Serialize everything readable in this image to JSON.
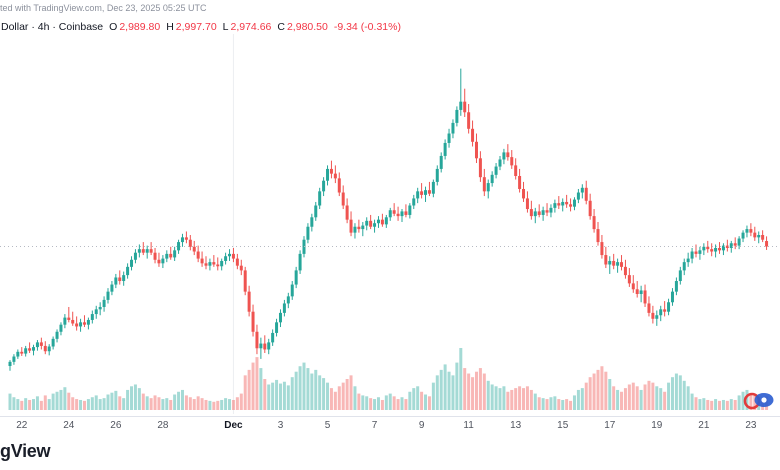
{
  "header": {
    "attribution": "ted with TradingView.com, Dec 23, 2025 05:25 UTC",
    "title": "Dollar · 4h · Coinbase",
    "ohlc": {
      "o_label": "O",
      "o": "2,989.80",
      "h_label": "H",
      "h": "2,997.70",
      "l_label": "L",
      "l": "2,974.66",
      "c_label": "C",
      "c": "2,980.50",
      "change": "-9.34 (-0.31%)"
    }
  },
  "footer": {
    "logo_text": "gView"
  },
  "colors": {
    "up": "#26a69a",
    "down": "#ef5350",
    "neg_text": "#f23645",
    "price_line": "#b6bac3",
    "month_gridline": "#eceef2",
    "axis_line": "#e0e3eb"
  },
  "chart_data": {
    "type": "candlestick",
    "title": "Dollar · 4h · Coinbase",
    "interval": "4h",
    "exchange": "Coinbase",
    "last": {
      "open": 2989.8,
      "high": 2997.7,
      "low": 2974.66,
      "close": 2980.5,
      "change": -9.34,
      "change_pct": -0.31
    },
    "ylim": [
      2700,
      3300
    ],
    "price_line": 2980.5,
    "grid": false,
    "candle_format": [
      "open",
      "high",
      "low",
      "close",
      "volume"
    ],
    "xticks": [
      {
        "label": "22",
        "i": 3
      },
      {
        "label": "24",
        "i": 15
      },
      {
        "label": "26",
        "i": 27
      },
      {
        "label": "28",
        "i": 39
      },
      {
        "label": "Dec",
        "i": 57,
        "bold": true
      },
      {
        "label": "3",
        "i": 69
      },
      {
        "label": "5",
        "i": 81
      },
      {
        "label": "7",
        "i": 93
      },
      {
        "label": "9",
        "i": 105
      },
      {
        "label": "11",
        "i": 117
      },
      {
        "label": "13",
        "i": 129
      },
      {
        "label": "15",
        "i": 141
      },
      {
        "label": "17",
        "i": 153
      },
      {
        "label": "19",
        "i": 165
      },
      {
        "label": "21",
        "i": 177
      },
      {
        "label": "23",
        "i": 189
      }
    ],
    "candles": [
      [
        2778,
        2788,
        2770,
        2785,
        18
      ],
      [
        2785,
        2798,
        2780,
        2794,
        14
      ],
      [
        2794,
        2806,
        2790,
        2802,
        12
      ],
      [
        2802,
        2810,
        2795,
        2799,
        10
      ],
      [
        2799,
        2812,
        2794,
        2808,
        13
      ],
      [
        2808,
        2818,
        2800,
        2804,
        11
      ],
      [
        2804,
        2814,
        2796,
        2810,
        12
      ],
      [
        2810,
        2822,
        2804,
        2818,
        15
      ],
      [
        2818,
        2826,
        2806,
        2812,
        10
      ],
      [
        2812,
        2820,
        2798,
        2803,
        16
      ],
      [
        2803,
        2815,
        2796,
        2811,
        12
      ],
      [
        2811,
        2828,
        2806,
        2824,
        18
      ],
      [
        2824,
        2840,
        2818,
        2836,
        20
      ],
      [
        2836,
        2852,
        2830,
        2848,
        22
      ],
      [
        2848,
        2866,
        2842,
        2860,
        25
      ],
      [
        2860,
        2878,
        2852,
        2856,
        19
      ],
      [
        2856,
        2870,
        2846,
        2850,
        14
      ],
      [
        2850,
        2862,
        2838,
        2845,
        12
      ],
      [
        2845,
        2858,
        2836,
        2852,
        11
      ],
      [
        2852,
        2864,
        2844,
        2848,
        10
      ],
      [
        2848,
        2860,
        2840,
        2856,
        12
      ],
      [
        2856,
        2872,
        2850,
        2866,
        14
      ],
      [
        2866,
        2880,
        2858,
        2874,
        16
      ],
      [
        2874,
        2886,
        2864,
        2878,
        12
      ],
      [
        2878,
        2896,
        2870,
        2890,
        13
      ],
      [
        2890,
        2910,
        2884,
        2904,
        17
      ],
      [
        2904,
        2922,
        2898,
        2916,
        19
      ],
      [
        2916,
        2934,
        2910,
        2928,
        21
      ],
      [
        2928,
        2940,
        2916,
        2922,
        15
      ],
      [
        2922,
        2938,
        2914,
        2932,
        13
      ],
      [
        2932,
        2952,
        2926,
        2946,
        22
      ],
      [
        2946,
        2964,
        2940,
        2958,
        26
      ],
      [
        2958,
        2976,
        2952,
        2970,
        28
      ],
      [
        2970,
        2984,
        2962,
        2976,
        24
      ],
      [
        2976,
        2988,
        2966,
        2970,
        18
      ],
      [
        2970,
        2982,
        2960,
        2976,
        15
      ],
      [
        2976,
        2988,
        2966,
        2970,
        13
      ],
      [
        2970,
        2978,
        2952,
        2958,
        16
      ],
      [
        2958,
        2970,
        2946,
        2952,
        14
      ],
      [
        2952,
        2966,
        2944,
        2960,
        12
      ],
      [
        2960,
        2974,
        2954,
        2968,
        13
      ],
      [
        2968,
        2980,
        2958,
        2962,
        11
      ],
      [
        2962,
        2980,
        2956,
        2974,
        17
      ],
      [
        2974,
        2992,
        2968,
        2988,
        20
      ],
      [
        2988,
        3002,
        2980,
        2996,
        22
      ],
      [
        2996,
        3006,
        2986,
        2992,
        16
      ],
      [
        2992,
        3000,
        2974,
        2980,
        14
      ],
      [
        2980,
        2990,
        2966,
        2972,
        12
      ],
      [
        2972,
        2982,
        2954,
        2960,
        15
      ],
      [
        2960,
        2972,
        2946,
        2952,
        13
      ],
      [
        2952,
        2964,
        2942,
        2948,
        11
      ],
      [
        2948,
        2960,
        2940,
        2954,
        10
      ],
      [
        2954,
        2966,
        2946,
        2950,
        9
      ],
      [
        2950,
        2962,
        2940,
        2947,
        10
      ],
      [
        2947,
        2960,
        2940,
        2956,
        11
      ],
      [
        2956,
        2970,
        2950,
        2964,
        13
      ],
      [
        2964,
        2976,
        2956,
        2968,
        12
      ],
      [
        2968,
        2978,
        2954,
        2960,
        11
      ],
      [
        2960,
        2968,
        2942,
        2948,
        14
      ],
      [
        2948,
        2958,
        2932,
        2940,
        18
      ],
      [
        2940,
        2946,
        2898,
        2904,
        38
      ],
      [
        2904,
        2914,
        2862,
        2870,
        44
      ],
      [
        2870,
        2882,
        2828,
        2836,
        52
      ],
      [
        2836,
        2848,
        2798,
        2808,
        58
      ],
      [
        2808,
        2826,
        2790,
        2816,
        46
      ],
      [
        2816,
        2830,
        2800,
        2806,
        34
      ],
      [
        2806,
        2824,
        2798,
        2818,
        28
      ],
      [
        2818,
        2840,
        2812,
        2834,
        30
      ],
      [
        2834,
        2858,
        2828,
        2852,
        33
      ],
      [
        2852,
        2874,
        2844,
        2868,
        29
      ],
      [
        2868,
        2890,
        2862,
        2884,
        31
      ],
      [
        2884,
        2902,
        2876,
        2896,
        27
      ],
      [
        2896,
        2922,
        2890,
        2916,
        36
      ],
      [
        2916,
        2946,
        2910,
        2940,
        42
      ],
      [
        2940,
        2974,
        2934,
        2968,
        48
      ],
      [
        2968,
        2998,
        2962,
        2992,
        52
      ],
      [
        2992,
        3020,
        2986,
        3014,
        46
      ],
      [
        3014,
        3036,
        3006,
        3030,
        40
      ],
      [
        3030,
        3056,
        3024,
        3050,
        44
      ],
      [
        3050,
        3080,
        3044,
        3074,
        38
      ],
      [
        3074,
        3098,
        3066,
        3092,
        35
      ],
      [
        3092,
        3118,
        3084,
        3112,
        30
      ],
      [
        3112,
        3126,
        3096,
        3104,
        24
      ],
      [
        3104,
        3118,
        3088,
        3096,
        20
      ],
      [
        3096,
        3106,
        3066,
        3072,
        26
      ],
      [
        3072,
        3084,
        3044,
        3050,
        30
      ],
      [
        3050,
        3062,
        3020,
        3026,
        34
      ],
      [
        3026,
        3040,
        2998,
        3004,
        38
      ],
      [
        3004,
        3020,
        2994,
        3014,
        26
      ],
      [
        3014,
        3026,
        3004,
        3010,
        18
      ],
      [
        3010,
        3022,
        2998,
        3016,
        16
      ],
      [
        3016,
        3030,
        3008,
        3024,
        15
      ],
      [
        3024,
        3034,
        3010,
        3014,
        13
      ],
      [
        3014,
        3026,
        3004,
        3020,
        12
      ],
      [
        3020,
        3032,
        3012,
        3026,
        14
      ],
      [
        3026,
        3036,
        3014,
        3018,
        11
      ],
      [
        3018,
        3034,
        3012,
        3030,
        16
      ],
      [
        3030,
        3046,
        3024,
        3042,
        18
      ],
      [
        3042,
        3054,
        3032,
        3036,
        15
      ],
      [
        3036,
        3048,
        3024,
        3032,
        12
      ],
      [
        3032,
        3044,
        3022,
        3040,
        14
      ],
      [
        3040,
        3052,
        3030,
        3034,
        12
      ],
      [
        3034,
        3054,
        3028,
        3050,
        20
      ],
      [
        3050,
        3068,
        3044,
        3062,
        24
      ],
      [
        3062,
        3080,
        3054,
        3074,
        26
      ],
      [
        3074,
        3088,
        3062,
        3068,
        20
      ],
      [
        3068,
        3082,
        3056,
        3076,
        17
      ],
      [
        3076,
        3090,
        3066,
        3070,
        15
      ],
      [
        3070,
        3094,
        3064,
        3090,
        30
      ],
      [
        3090,
        3118,
        3084,
        3112,
        38
      ],
      [
        3112,
        3140,
        3106,
        3134,
        44
      ],
      [
        3134,
        3162,
        3128,
        3156,
        50
      ],
      [
        3156,
        3180,
        3148,
        3172,
        42
      ],
      [
        3172,
        3196,
        3164,
        3190,
        38
      ],
      [
        3190,
        3218,
        3184,
        3212,
        52
      ],
      [
        3212,
        3282,
        3202,
        3226,
        68
      ],
      [
        3226,
        3248,
        3200,
        3208,
        46
      ],
      [
        3208,
        3222,
        3172,
        3180,
        40
      ],
      [
        3180,
        3194,
        3150,
        3158,
        36
      ],
      [
        3158,
        3172,
        3122,
        3130,
        42
      ],
      [
        3130,
        3142,
        3090,
        3098,
        46
      ],
      [
        3098,
        3112,
        3066,
        3074,
        40
      ],
      [
        3074,
        3094,
        3062,
        3088,
        32
      ],
      [
        3088,
        3108,
        3082,
        3102,
        28
      ],
      [
        3102,
        3122,
        3096,
        3116,
        26
      ],
      [
        3116,
        3134,
        3110,
        3128,
        24
      ],
      [
        3128,
        3146,
        3120,
        3140,
        26
      ],
      [
        3140,
        3154,
        3126,
        3132,
        20
      ],
      [
        3132,
        3144,
        3112,
        3118,
        22
      ],
      [
        3118,
        3130,
        3094,
        3100,
        24
      ],
      [
        3100,
        3112,
        3072,
        3078,
        26
      ],
      [
        3078,
        3090,
        3056,
        3062,
        24
      ],
      [
        3062,
        3074,
        3038,
        3044,
        26
      ],
      [
        3044,
        3058,
        3026,
        3032,
        22
      ],
      [
        3032,
        3046,
        3020,
        3040,
        18
      ],
      [
        3040,
        3052,
        3030,
        3034,
        14
      ],
      [
        3034,
        3048,
        3024,
        3042,
        13
      ],
      [
        3042,
        3054,
        3032,
        3038,
        12
      ],
      [
        3038,
        3052,
        3030,
        3046,
        14
      ],
      [
        3046,
        3060,
        3038,
        3054,
        15
      ],
      [
        3054,
        3066,
        3044,
        3050,
        12
      ],
      [
        3050,
        3062,
        3040,
        3056,
        11
      ],
      [
        3056,
        3068,
        3046,
        3052,
        12
      ],
      [
        3052,
        3062,
        3040,
        3048,
        10
      ],
      [
        3048,
        3064,
        3042,
        3060,
        16
      ],
      [
        3060,
        3078,
        3054,
        3072,
        22
      ],
      [
        3072,
        3086,
        3062,
        3080,
        24
      ],
      [
        3080,
        3092,
        3052,
        3058,
        30
      ],
      [
        3058,
        3070,
        3026,
        3032,
        36
      ],
      [
        3032,
        3044,
        3004,
        3010,
        40
      ],
      [
        3010,
        3022,
        2982,
        2988,
        44
      ],
      [
        2988,
        3000,
        2960,
        2966,
        48
      ],
      [
        2966,
        2980,
        2944,
        2950,
        42
      ],
      [
        2950,
        2964,
        2934,
        2956,
        34
      ],
      [
        2956,
        2968,
        2942,
        2948,
        26
      ],
      [
        2948,
        2960,
        2936,
        2954,
        22
      ],
      [
        2954,
        2966,
        2940,
        2946,
        20
      ],
      [
        2946,
        2958,
        2926,
        2932,
        24
      ],
      [
        2932,
        2944,
        2912,
        2918,
        28
      ],
      [
        2918,
        2932,
        2902,
        2908,
        30
      ],
      [
        2908,
        2922,
        2894,
        2900,
        26
      ],
      [
        2900,
        2914,
        2886,
        2906,
        22
      ],
      [
        2906,
        2916,
        2878,
        2884,
        28
      ],
      [
        2884,
        2896,
        2862,
        2868,
        32
      ],
      [
        2868,
        2880,
        2850,
        2858,
        30
      ],
      [
        2858,
        2872,
        2846,
        2864,
        26
      ],
      [
        2864,
        2880,
        2854,
        2874,
        24
      ],
      [
        2874,
        2888,
        2862,
        2870,
        20
      ],
      [
        2870,
        2892,
        2864,
        2886,
        30
      ],
      [
        2886,
        2910,
        2880,
        2904,
        36
      ],
      [
        2904,
        2928,
        2898,
        2922,
        40
      ],
      [
        2922,
        2946,
        2916,
        2940,
        38
      ],
      [
        2940,
        2960,
        2932,
        2954,
        32
      ],
      [
        2954,
        2970,
        2946,
        2960,
        26
      ],
      [
        2960,
        2978,
        2952,
        2972,
        18
      ],
      [
        2972,
        2984,
        2962,
        2968,
        14
      ],
      [
        2968,
        2980,
        2958,
        2974,
        12
      ],
      [
        2974,
        2986,
        2966,
        2980,
        13
      ],
      [
        2980,
        2990,
        2970,
        2976,
        11
      ],
      [
        2976,
        2986,
        2964,
        2972,
        10
      ],
      [
        2972,
        2984,
        2962,
        2978,
        12
      ],
      [
        2978,
        2988,
        2968,
        2974,
        10
      ],
      [
        2974,
        2986,
        2966,
        2982,
        11
      ],
      [
        2982,
        2992,
        2972,
        2978,
        10
      ],
      [
        2978,
        2990,
        2970,
        2986,
        12
      ],
      [
        2986,
        2996,
        2976,
        2982,
        11
      ],
      [
        2982,
        2998,
        2976,
        2994,
        16
      ],
      [
        2994,
        3008,
        2988,
        3004,
        20
      ],
      [
        3004,
        3016,
        2996,
        3010,
        22
      ],
      [
        3010,
        3020,
        2998,
        3004,
        18
      ],
      [
        3004,
        3014,
        2990,
        2996,
        16
      ],
      [
        2996,
        3006,
        2986,
        3000,
        14
      ],
      [
        3000,
        3008,
        2988,
        2992,
        13
      ],
      [
        2989.8,
        2997.7,
        2974.66,
        2980.5,
        15
      ]
    ]
  }
}
